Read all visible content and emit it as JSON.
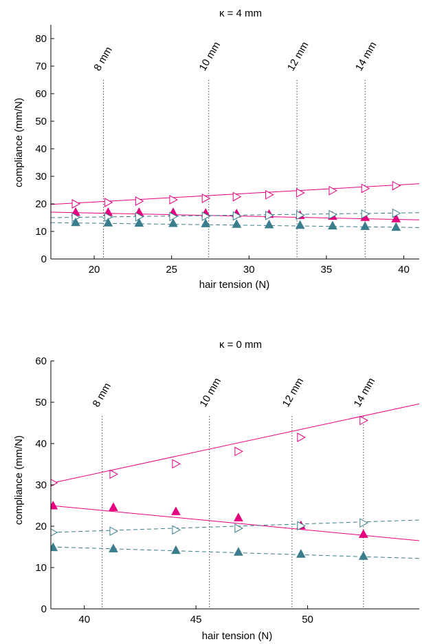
{
  "chart_data": [
    {
      "type": "line",
      "title": "κ = 4 mm",
      "xlabel": "hair tension (N)",
      "ylabel": "compliance (mm/N)",
      "xlim": [
        17.2,
        41.0
      ],
      "ylim": [
        0,
        85
      ],
      "xticks": [
        20,
        25,
        30,
        35,
        40
      ],
      "yticks": [
        0,
        10,
        20,
        30,
        40,
        50,
        60,
        70,
        80
      ],
      "grid": false,
      "vlines": [
        {
          "x": 20.6,
          "label": "8 mm"
        },
        {
          "x": 27.4,
          "label": "10 mm"
        },
        {
          "x": 33.1,
          "label": "12 mm"
        },
        {
          "x": 37.5,
          "label": "14 mm"
        }
      ],
      "series": [
        {
          "color": "#e6007e",
          "dash": false,
          "marker": "triangle-right-open",
          "line_x": [
            17.2,
            41.0
          ],
          "line_y": [
            19.8,
            27.3
          ],
          "x": [
            18.8,
            20.9,
            22.9,
            25.1,
            27.2,
            29.2,
            31.3,
            33.3,
            35.4,
            37.5,
            39.5
          ],
          "y": [
            20.0,
            20.5,
            21.0,
            21.5,
            22.0,
            22.6,
            23.3,
            24.0,
            24.8,
            25.6,
            26.6
          ]
        },
        {
          "color": "#e6007e",
          "dash": false,
          "marker": "triangle-up-filled",
          "line_x": [
            17.2,
            41.0
          ],
          "line_y": [
            17.0,
            14.2
          ],
          "x": [
            18.8,
            20.9,
            22.9,
            25.1,
            27.2,
            29.2,
            31.3,
            33.3,
            35.4,
            37.5,
            39.5
          ],
          "y": [
            17.0,
            17.0,
            17.0,
            16.9,
            16.7,
            16.5,
            16.3,
            15.9,
            15.6,
            15.2,
            14.7
          ]
        },
        {
          "color": "#3a7d8c",
          "dash": true,
          "marker": "triangle-right-open",
          "line_x": [
            17.2,
            41.0
          ],
          "line_y": [
            15.0,
            16.8
          ],
          "x": [
            18.8,
            20.9,
            22.9,
            25.1,
            27.2,
            29.2,
            31.3,
            33.3,
            35.4,
            37.5,
            39.5
          ],
          "y": [
            15.1,
            15.2,
            15.3,
            15.4,
            15.5,
            15.6,
            15.8,
            15.9,
            16.1,
            16.3,
            16.6
          ]
        },
        {
          "color": "#3a7d8c",
          "dash": true,
          "marker": "triangle-up-filled",
          "line_x": [
            17.2,
            41.0
          ],
          "line_y": [
            13.2,
            11.4
          ],
          "x": [
            18.8,
            20.9,
            22.9,
            25.1,
            27.2,
            29.2,
            31.3,
            33.3,
            35.4,
            37.5,
            39.5
          ],
          "y": [
            13.3,
            13.2,
            13.1,
            13.0,
            12.9,
            12.7,
            12.5,
            12.3,
            12.1,
            11.9,
            11.6
          ]
        }
      ]
    },
    {
      "type": "line",
      "title": "κ = 0 mm",
      "xlabel": "hair tension (N)",
      "ylabel": "compliance (mm/N)",
      "xlim": [
        38.5,
        55.0
      ],
      "ylim": [
        0,
        60
      ],
      "xticks": [
        40,
        45,
        50
      ],
      "yticks": [
        0,
        10,
        20,
        30,
        40,
        50,
        60
      ],
      "grid": false,
      "vlines": [
        {
          "x": 40.8,
          "label": "8 mm"
        },
        {
          "x": 45.6,
          "label": "10 mm"
        },
        {
          "x": 49.3,
          "label": "12 mm"
        },
        {
          "x": 52.5,
          "label": "14 mm"
        }
      ],
      "series": [
        {
          "color": "#e6007e",
          "dash": false,
          "marker": "triangle-right-open",
          "line_x": [
            38.5,
            55.0
          ],
          "line_y": [
            30.4,
            49.6
          ],
          "x": [
            38.6,
            41.3,
            44.1,
            46.9,
            49.7,
            52.5
          ],
          "y": [
            30.5,
            32.6,
            35.1,
            38.1,
            41.5,
            45.6
          ]
        },
        {
          "color": "#e6007e",
          "dash": false,
          "marker": "triangle-up-filled",
          "line_x": [
            38.5,
            55.0
          ],
          "line_y": [
            25.0,
            16.5
          ],
          "x": [
            38.6,
            41.3,
            44.1,
            46.9,
            49.7,
            52.5
          ],
          "y": [
            25.0,
            24.6,
            23.6,
            22.1,
            20.2,
            18.1
          ]
        },
        {
          "color": "#3a7d8c",
          "dash": true,
          "marker": "triangle-right-open",
          "line_x": [
            38.5,
            55.0
          ],
          "line_y": [
            18.5,
            21.5
          ],
          "x": [
            38.6,
            41.3,
            44.1,
            46.9,
            49.7,
            52.5
          ],
          "y": [
            18.5,
            18.8,
            19.1,
            19.5,
            20.1,
            20.8
          ]
        },
        {
          "color": "#3a7d8c",
          "dash": true,
          "marker": "triangle-up-filled",
          "line_x": [
            38.5,
            55.0
          ],
          "line_y": [
            15.0,
            12.2
          ],
          "x": [
            38.6,
            41.3,
            44.1,
            46.9,
            49.7,
            52.5
          ],
          "y": [
            14.9,
            14.6,
            14.2,
            13.8,
            13.3,
            12.8
          ]
        }
      ]
    }
  ]
}
